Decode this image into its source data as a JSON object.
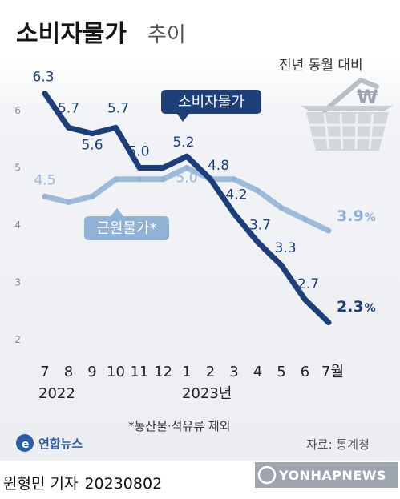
{
  "header": {
    "title": "소비자물가",
    "title_suffix": "추이",
    "subtitle": "전년 동월 대비"
  },
  "chart_data": {
    "type": "line",
    "categories": [
      "7",
      "8",
      "9",
      "10",
      "11",
      "12",
      "1",
      "2",
      "3",
      "4",
      "5",
      "6",
      "7월"
    ],
    "year_labels": [
      "2022",
      "2023년"
    ],
    "y_ticks": [
      "2",
      "3",
      "4",
      "5",
      "6"
    ],
    "ylim": [
      2,
      6.6
    ],
    "series": [
      {
        "name": "소비자물가",
        "color": "#1c3f7a",
        "values": [
          6.3,
          5.7,
          5.6,
          5.7,
          5.0,
          5.0,
          5.2,
          4.8,
          4.2,
          3.7,
          3.3,
          2.7,
          2.3
        ],
        "labels": [
          "6.3",
          "5.7",
          "5.6",
          "5.7",
          "5.0",
          "",
          "5.2",
          "4.8",
          "4.2",
          "3.7",
          "3.3",
          "2.7",
          "2.3"
        ]
      },
      {
        "name": "근원물가*",
        "color": "#8fb2d6",
        "values": [
          4.5,
          4.4,
          4.5,
          4.8,
          4.8,
          4.8,
          5.0,
          4.8,
          4.8,
          4.6,
          4.3,
          4.1,
          3.9
        ],
        "labels": [
          "4.5",
          "",
          "",
          "",
          "",
          "",
          "5.0",
          "",
          "",
          "",
          "",
          "",
          "3.9"
        ]
      }
    ],
    "end_labels": {
      "main": "2.3",
      "core": "3.9",
      "unit": "%"
    }
  },
  "footnote": "*농산물·석유류 제외",
  "source": "자료: 통계청",
  "logo": {
    "text": "연합뉴스",
    "watermark": "YONHAPNEWS"
  },
  "byline": {
    "author": "원형민 기자",
    "date": "20230802"
  },
  "icon": {
    "name": "shopping-basket-icon"
  }
}
